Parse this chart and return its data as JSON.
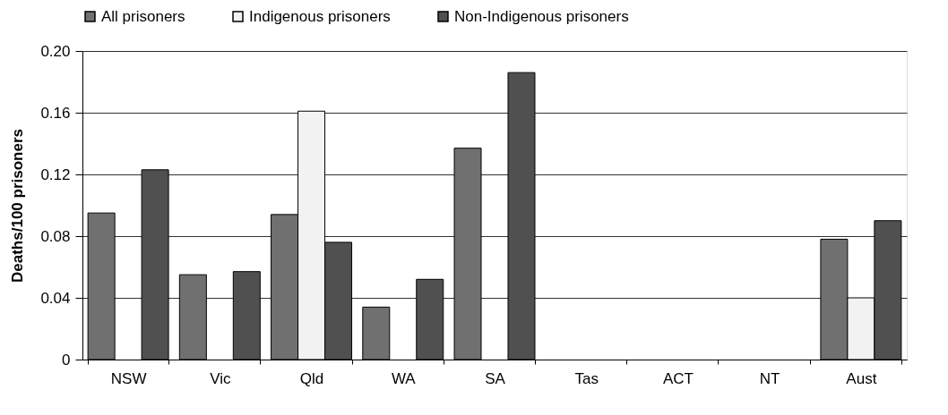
{
  "chart_data": {
    "type": "bar",
    "ylabel": "Deaths/100 prisoners",
    "categories": [
      "NSW",
      "Vic",
      "Qld",
      "WA",
      "SA",
      "Tas",
      "ACT",
      "NT",
      "Aust"
    ],
    "series": [
      {
        "name": "All prisoners",
        "color": "#707070",
        "values": [
          0.095,
          0.055,
          0.094,
          0.034,
          0.137,
          null,
          null,
          null,
          0.078
        ]
      },
      {
        "name": "Indigenous prisoners",
        "color": "#f2f2f2",
        "values": [
          null,
          null,
          0.161,
          null,
          null,
          null,
          null,
          null,
          0.04
        ]
      },
      {
        "name": "Non-Indigenous prisoners",
        "color": "#505050",
        "values": [
          0.123,
          0.057,
          0.076,
          0.052,
          0.186,
          null,
          null,
          null,
          0.09
        ]
      }
    ],
    "ylim": [
      0,
      0.2
    ],
    "yticks": [
      {
        "value": 0,
        "label": "0"
      },
      {
        "value": 0.04,
        "label": "0.04"
      },
      {
        "value": 0.08,
        "label": "0.08"
      },
      {
        "value": 0.12,
        "label": "0.12"
      },
      {
        "value": 0.16,
        "label": "0.16"
      },
      {
        "value": 0.2,
        "label": "0.20"
      }
    ],
    "grid": "y",
    "legend": "top"
  }
}
